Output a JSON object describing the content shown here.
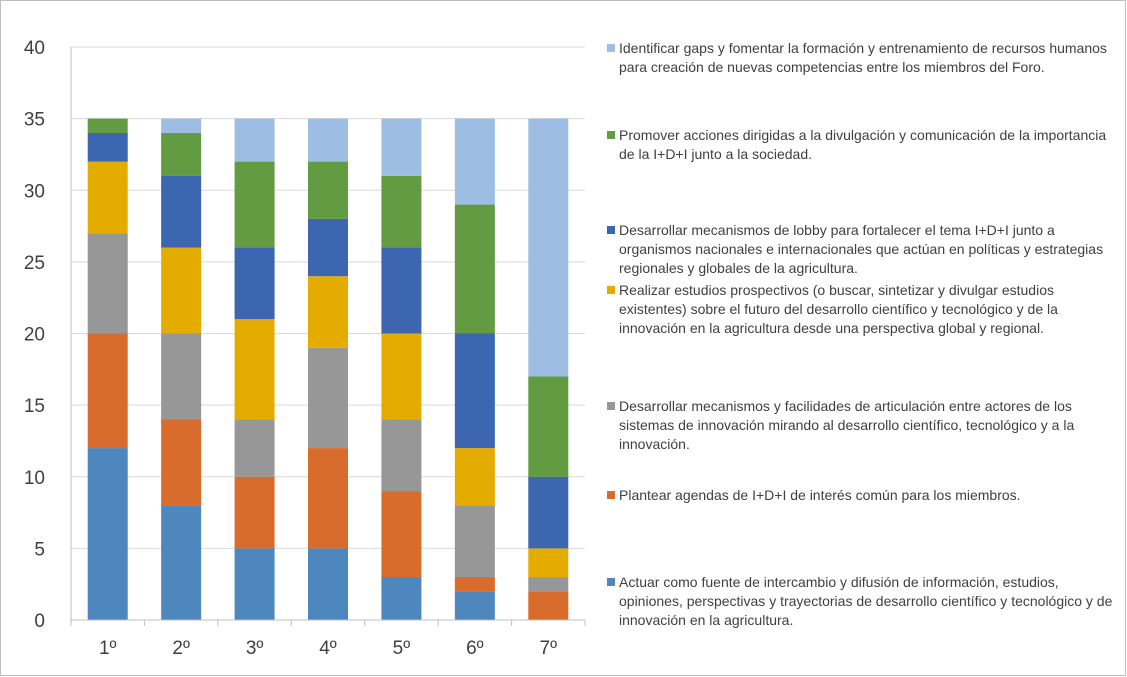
{
  "chart_data": {
    "type": "bar",
    "stacked": true,
    "title": "",
    "xlabel": "",
    "ylabel": "",
    "ylim": [
      0,
      40
    ],
    "yticks": [
      0,
      5,
      10,
      15,
      20,
      25,
      30,
      35,
      40
    ],
    "categories": [
      "1º",
      "2º",
      "3º",
      "4º",
      "5º",
      "6º",
      "7º"
    ],
    "grid": "horizontal",
    "legend_position": "right",
    "series": [
      {
        "name": "Actuar como fuente de intercambio y difusión de información, estudios, opiniones, perspectivas y trayectorias de desarrollo científico y tecnológico y de innovación en la agricultura.",
        "color": "#4e86be",
        "values": [
          12,
          8,
          5,
          5,
          3,
          2,
          0
        ]
      },
      {
        "name": "Plantear agendas de I+D+I de interés común para los miembros.",
        "color": "#d86c2c",
        "values": [
          8,
          6,
          5,
          7,
          6,
          1,
          2
        ]
      },
      {
        "name": "Desarrollar mecanismos y facilidades de articulación entre actores de los sistemas de innovación mirando al desarrollo científico, tecnológico y a la innovación.",
        "color": "#979797",
        "values": [
          7,
          6,
          4,
          7,
          5,
          5,
          1
        ]
      },
      {
        "name": "Realizar estudios prospectivos (o buscar, sintetizar y divulgar estudios existentes) sobre el futuro del desarrollo científico y tecnológico y de la innovación en la agricultura desde una perspectiva global y regional.",
        "color": "#e5ac00",
        "values": [
          5,
          6,
          7,
          5,
          6,
          4,
          2
        ]
      },
      {
        "name": "Desarrollar mecanismos de lobby para fortalecer el tema I+D+I junto a organismos nacionales e internacionales que actúan en políticas y estrategias regionales y globales de la agricultura.",
        "color": "#3c66af",
        "values": [
          2,
          5,
          5,
          4,
          6,
          8,
          5
        ]
      },
      {
        "name": "Promover acciones dirigidas a la divulgación y comunicación de la importancia de la I+D+I junto a la sociedad.",
        "color": "#629b41",
        "values": [
          1,
          3,
          6,
          4,
          5,
          9,
          7
        ]
      },
      {
        "name": "Identificar gaps y fomentar la formación y entrenamiento de recursos humanos para creación de nuevas competencias entre los miembros del Foro.",
        "color": "#9dbde3",
        "values": [
          0,
          1,
          3,
          3,
          4,
          6,
          18
        ]
      }
    ]
  },
  "legend": {
    "order": [
      6,
      5,
      4,
      3,
      2,
      1,
      0
    ]
  }
}
